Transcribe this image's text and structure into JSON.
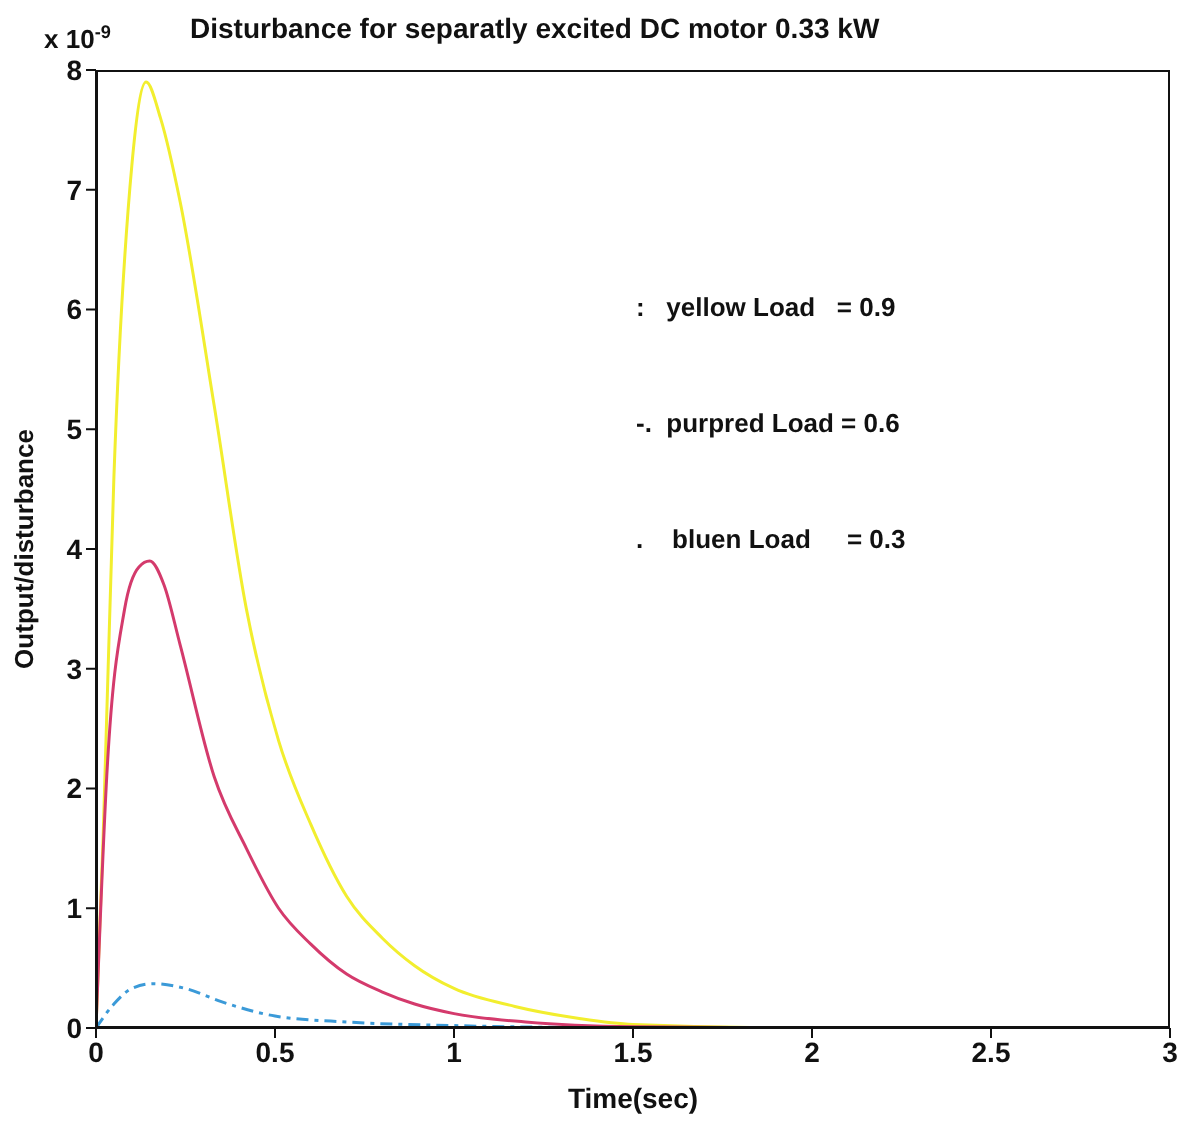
{
  "chart_data": {
    "type": "line",
    "title": "Disturbance for separatly excited DC motor 0.33 kW",
    "xlabel": "Time(sec)",
    "ylabel": "Output/disturbance",
    "annotations": [
      "x 10$^{-9}$",
      ":   yellow Load   = 0.9",
      "-.  purpred Load = 0.6",
      ".    bluen Load     = 0.3"
    ],
    "xlim": [
      0,
      3
    ],
    "xticks": [
      0,
      0.5,
      1,
      1.5,
      2,
      2.5,
      3
    ],
    "ylim": [
      0,
      8
    ],
    "yticks": [
      0,
      1,
      2,
      3,
      4,
      5,
      6,
      7,
      8
    ],
    "grid": false,
    "legend": false,
    "series": [
      {
        "color": "#f2ee2e",
        "line_style": "solid",
        "x": [
          0,
          0.02,
          0.05,
          0.1,
          0.14,
          0.18,
          0.235,
          0.33,
          0.42,
          0.51,
          0.6,
          0.7,
          0.8,
          0.89,
          1.0,
          1.17,
          1.35,
          1.5,
          2,
          2.5,
          3
        ],
        "values": [
          0,
          1.6,
          4.6,
          7.2,
          7.9,
          7.6,
          6.9,
          5.2,
          3.5,
          2.4,
          1.7,
          1.1,
          0.75,
          0.52,
          0.33,
          0.18,
          0.08,
          0.03,
          0,
          0,
          0
        ]
      },
      {
        "color": "#d43a6c",
        "line_style": "solid",
        "x": [
          0,
          0.03,
          0.08,
          0.12,
          0.15,
          0.19,
          0.235,
          0.33,
          0.42,
          0.51,
          0.6,
          0.7,
          0.8,
          0.89,
          1.0,
          1.2,
          1.5,
          2
        ],
        "values": [
          0,
          2.1,
          3.5,
          3.85,
          3.9,
          3.7,
          3.2,
          2.1,
          1.5,
          1.0,
          0.7,
          0.45,
          0.3,
          0.2,
          0.12,
          0.05,
          0.01,
          0
        ]
      },
      {
        "color": "#3b9ad8",
        "line_style": "dashed",
        "x": [
          0,
          0.05,
          0.1,
          0.16,
          0.25,
          0.35,
          0.5,
          0.7,
          1.0,
          1.5
        ],
        "values": [
          0,
          0.2,
          0.33,
          0.37,
          0.33,
          0.22,
          0.1,
          0.05,
          0.02,
          0
        ]
      }
    ]
  }
}
